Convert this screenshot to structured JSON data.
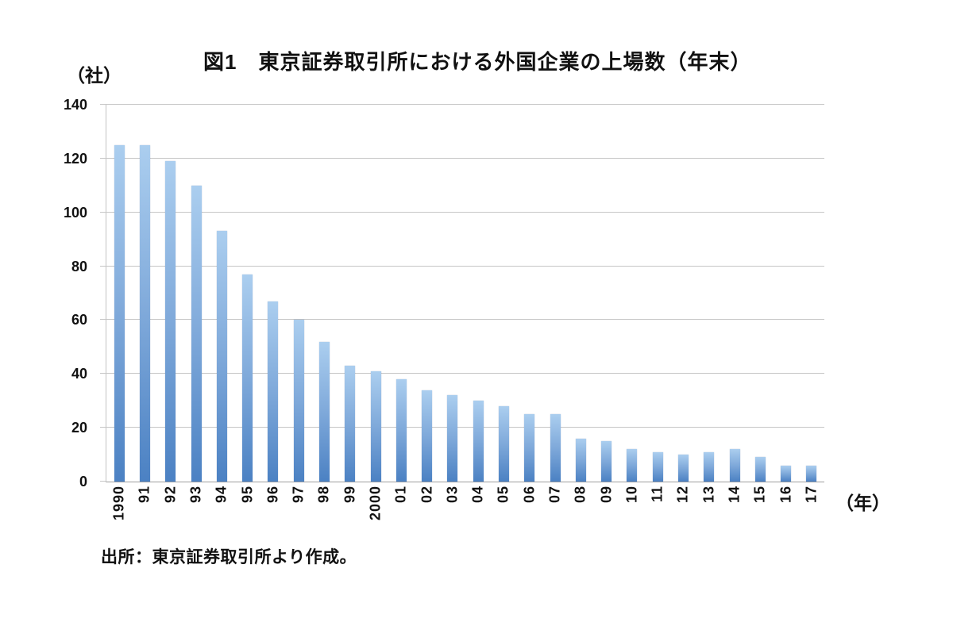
{
  "chart": {
    "title": "図1　東京証券取引所における外国企業の上場数（年末）",
    "y_unit": "（社）",
    "x_unit": "（年）",
    "source": "出所：東京証券取引所より作成。"
  },
  "chart_data": {
    "type": "bar",
    "title": "図1　東京証券取引所における外国企業の上場数（年末）",
    "ylabel": "（社）",
    "xlabel": "（年）",
    "categories": [
      "1990",
      "91",
      "92",
      "93",
      "94",
      "95",
      "96",
      "97",
      "98",
      "99",
      "2000",
      "01",
      "02",
      "03",
      "04",
      "05",
      "06",
      "07",
      "08",
      "09",
      "10",
      "11",
      "12",
      "13",
      "14",
      "15",
      "16",
      "17"
    ],
    "values": [
      125,
      125,
      119,
      110,
      93,
      77,
      67,
      60,
      52,
      43,
      41,
      38,
      34,
      32,
      30,
      28,
      25,
      25,
      16,
      15,
      12,
      11,
      10,
      11,
      12,
      9,
      6,
      6
    ],
    "ylim": [
      0,
      140
    ],
    "yticks": [
      0,
      20,
      40,
      60,
      80,
      100,
      120,
      140
    ],
    "grid": true,
    "legend": false,
    "source": "出所：東京証券取引所より作成。",
    "bar_color_top": "#ABCEEF",
    "bar_color_bottom": "#4B81C3",
    "gridline_color": "#C6C6C6"
  }
}
